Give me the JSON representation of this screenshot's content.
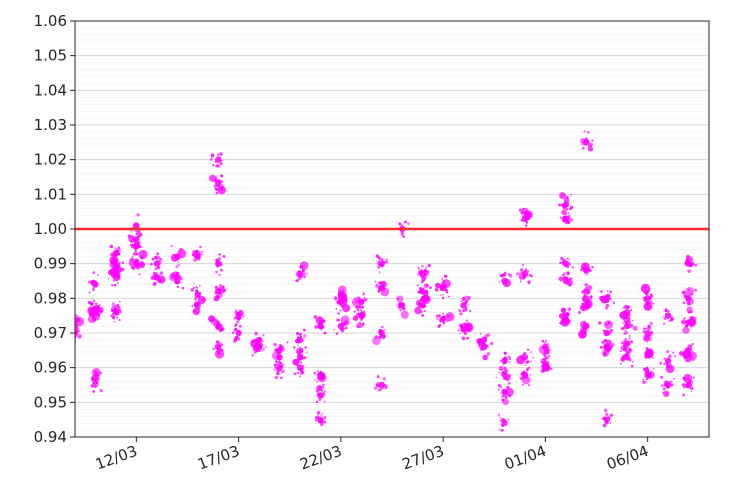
{
  "chart_data": {
    "type": "scatter",
    "title": "",
    "xlabel": "",
    "ylabel": "",
    "ylim": [
      0.94,
      1.06
    ],
    "y_ticks": [
      0.94,
      0.95,
      0.96,
      0.97,
      0.98,
      0.99,
      1.0,
      1.01,
      1.02,
      1.03,
      1.04,
      1.05,
      1.06
    ],
    "y_tick_labels": [
      "0.94",
      "0.95",
      "0.96",
      "0.97",
      "0.98",
      "0.99",
      "1.00",
      "1.01",
      "1.02",
      "1.03",
      "1.04",
      "1.05",
      "1.06"
    ],
    "x_range_days": [
      "2024-03-09",
      "2024-04-09"
    ],
    "x_ticks": [
      "2024-03-12",
      "2024-03-17",
      "2024-03-22",
      "2024-03-27",
      "2024-04-01",
      "2024-04-06"
    ],
    "x_tick_labels": [
      "12/03",
      "17/03",
      "22/03",
      "27/03",
      "01/04",
      "06/04"
    ],
    "grid": "horizontal",
    "marker_color": "#ff00ff",
    "reference_line": {
      "y": 1.0,
      "color": "#ff2a2a"
    },
    "series": [
      {
        "points": [
          [
            "2024-03-09",
            0.972
          ],
          [
            "2024-03-09",
            0.97
          ],
          [
            "2024-03-10",
            0.956
          ],
          [
            "2024-03-10",
            0.977
          ],
          [
            "2024-03-10",
            0.984
          ],
          [
            "2024-03-10",
            0.976
          ],
          [
            "2024-03-11",
            0.976
          ],
          [
            "2024-03-11",
            0.989
          ],
          [
            "2024-03-11",
            0.993
          ],
          [
            "2024-03-11",
            0.987
          ],
          [
            "2024-03-12",
            0.99
          ],
          [
            "2024-03-12",
            0.997
          ],
          [
            "2024-03-12",
            1.001
          ],
          [
            "2024-03-12",
            0.995
          ],
          [
            "2024-03-13",
            0.99
          ],
          [
            "2024-03-13",
            0.986
          ],
          [
            "2024-03-14",
            0.992
          ],
          [
            "2024-03-14",
            0.985
          ],
          [
            "2024-03-15",
            0.981
          ],
          [
            "2024-03-15",
            0.978
          ],
          [
            "2024-03-15",
            0.992
          ],
          [
            "2024-03-16",
            0.966
          ],
          [
            "2024-03-16",
            0.972
          ],
          [
            "2024-03-16",
            0.99
          ],
          [
            "2024-03-16",
            0.982
          ],
          [
            "2024-03-16",
            1.013
          ],
          [
            "2024-03-16",
            1.02
          ],
          [
            "2024-03-17",
            0.97
          ],
          [
            "2024-03-17",
            0.975
          ],
          [
            "2024-03-18",
            0.968
          ],
          [
            "2024-03-18",
            0.966
          ],
          [
            "2024-03-19",
            0.963
          ],
          [
            "2024-03-19",
            0.96
          ],
          [
            "2024-03-19",
            0.965
          ],
          [
            "2024-03-20",
            0.968
          ],
          [
            "2024-03-20",
            0.963
          ],
          [
            "2024-03-20",
            0.96
          ],
          [
            "2024-03-20",
            0.987
          ],
          [
            "2024-03-21",
            0.958
          ],
          [
            "2024-03-21",
            0.972
          ],
          [
            "2024-03-21",
            0.945
          ],
          [
            "2024-03-21",
            0.952
          ],
          [
            "2024-03-22",
            0.972
          ],
          [
            "2024-03-22",
            0.979
          ],
          [
            "2024-03-22",
            0.981
          ],
          [
            "2024-03-23",
            0.975
          ],
          [
            "2024-03-23",
            0.979
          ],
          [
            "2024-03-24",
            0.97
          ],
          [
            "2024-03-24",
            0.983
          ],
          [
            "2024-03-24",
            0.955
          ],
          [
            "2024-03-24",
            0.99
          ],
          [
            "2024-03-25",
            0.978
          ],
          [
            "2024-03-25",
            1.0
          ],
          [
            "2024-03-26",
            0.982
          ],
          [
            "2024-03-26",
            0.978
          ],
          [
            "2024-03-26",
            0.987
          ],
          [
            "2024-03-27",
            0.983
          ],
          [
            "2024-03-27",
            0.974
          ],
          [
            "2024-03-28",
            0.978
          ],
          [
            "2024-03-28",
            0.971
          ],
          [
            "2024-03-29",
            0.968
          ],
          [
            "2024-03-29",
            0.966
          ],
          [
            "2024-03-30",
            0.958
          ],
          [
            "2024-03-30",
            0.953
          ],
          [
            "2024-03-30",
            0.962
          ],
          [
            "2024-03-30",
            0.985
          ],
          [
            "2024-03-30",
            0.944
          ],
          [
            "2024-03-31",
            0.963
          ],
          [
            "2024-03-31",
            0.958
          ],
          [
            "2024-03-31",
            1.003
          ],
          [
            "2024-03-31",
            0.987
          ],
          [
            "2024-04-01",
            0.961
          ],
          [
            "2024-04-01",
            0.96
          ],
          [
            "2024-04-01",
            0.966
          ],
          [
            "2024-04-02",
            0.975
          ],
          [
            "2024-04-02",
            0.985
          ],
          [
            "2024-04-02",
            0.99
          ],
          [
            "2024-04-02",
            1.003
          ],
          [
            "2024-04-02",
            1.007
          ],
          [
            "2024-04-03",
            0.978
          ],
          [
            "2024-04-03",
            0.982
          ],
          [
            "2024-04-03",
            0.972
          ],
          [
            "2024-04-03",
            0.988
          ],
          [
            "2024-04-03",
            1.025
          ],
          [
            "2024-04-04",
            0.97
          ],
          [
            "2024-04-04",
            0.966
          ],
          [
            "2024-04-04",
            0.945
          ],
          [
            "2024-04-04",
            0.98
          ],
          [
            "2024-04-05",
            0.963
          ],
          [
            "2024-04-05",
            0.972
          ],
          [
            "2024-04-05",
            0.967
          ],
          [
            "2024-04-05",
            0.976
          ],
          [
            "2024-04-06",
            0.958
          ],
          [
            "2024-04-06",
            0.964
          ],
          [
            "2024-04-06",
            0.97
          ],
          [
            "2024-04-06",
            0.98
          ],
          [
            "2024-04-07",
            0.955
          ],
          [
            "2024-04-07",
            0.962
          ],
          [
            "2024-04-07",
            0.975
          ],
          [
            "2024-04-08",
            0.965
          ],
          [
            "2024-04-08",
            0.98
          ],
          [
            "2024-04-08",
            0.955
          ],
          [
            "2024-04-08",
            0.973
          ],
          [
            "2024-04-08",
            0.99
          ]
        ]
      }
    ]
  }
}
